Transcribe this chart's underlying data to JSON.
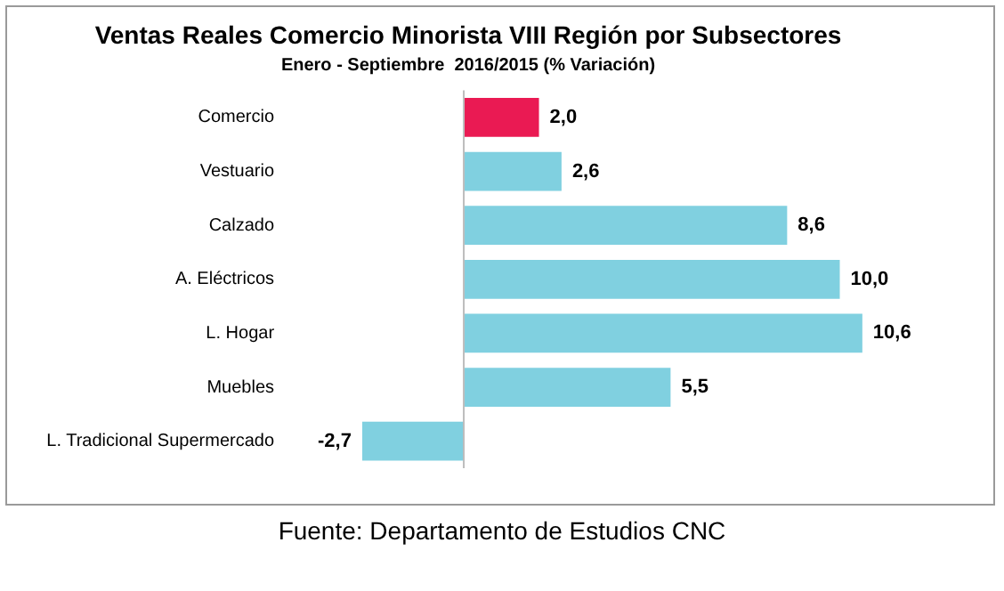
{
  "chart_data": {
    "type": "bar",
    "orientation": "horizontal",
    "title": "Ventas Reales Comercio Minorista VIII Región por Subsectores",
    "subtitle": "Enero - Septiembre  2016/2015 (% Variación)",
    "categories": [
      "Comercio",
      "Vestuario",
      "Calzado",
      "A. Eléctricos",
      "L. Hogar",
      "Muebles",
      "L. Tradicional Supermercado"
    ],
    "values": [
      2.0,
      2.6,
      8.6,
      10.0,
      10.6,
      5.5,
      -2.7
    ],
    "value_labels": [
      "2,0",
      "2,6",
      "8,6",
      "10,0",
      "10,6",
      "5,5",
      "-2,7"
    ],
    "colors": [
      "#ea1a53",
      "#80d0e0",
      "#80d0e0",
      "#80d0e0",
      "#80d0e0",
      "#80d0e0",
      "#80d0e0"
    ],
    "legend": false,
    "grid": false,
    "annotations": [
      "Fuente: Departamento de Estudios CNC"
    ]
  }
}
